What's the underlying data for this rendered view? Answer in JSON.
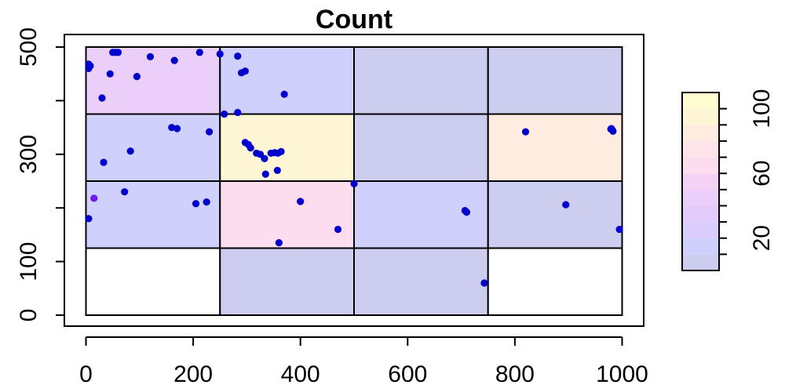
{
  "chart_data": {
    "type": "heatmap",
    "title": "Count",
    "xlabel": "",
    "ylabel": "",
    "xlim": [
      0,
      1000
    ],
    "ylim": [
      0,
      500
    ],
    "x_ticks": [
      "0",
      "200",
      "400",
      "600",
      "800",
      "1000"
    ],
    "y_ticks": [
      "0",
      "100",
      "300",
      "500"
    ],
    "cells": [
      {
        "x0": 0,
        "x1": 250,
        "y0": 375,
        "y1": 500,
        "count": 45
      },
      {
        "x0": 250,
        "x1": 500,
        "y0": 375,
        "y1": 500,
        "count": 15
      },
      {
        "x0": 500,
        "x1": 750,
        "y0": 375,
        "y1": 500,
        "count": 5
      },
      {
        "x0": 750,
        "x1": 1000,
        "y0": 375,
        "y1": 500,
        "count": 5
      },
      {
        "x0": 0,
        "x1": 250,
        "y0": 250,
        "y1": 375,
        "count": 15
      },
      {
        "x0": 250,
        "x1": 500,
        "y0": 250,
        "y1": 375,
        "count": 95
      },
      {
        "x0": 500,
        "x1": 750,
        "y0": 250,
        "y1": 375,
        "count": 5
      },
      {
        "x0": 750,
        "x1": 1000,
        "y0": 250,
        "y1": 375,
        "count": 80
      },
      {
        "x0": 0,
        "x1": 250,
        "y0": 125,
        "y1": 250,
        "count": 15
      },
      {
        "x0": 250,
        "x1": 500,
        "y0": 125,
        "y1": 250,
        "count": 60
      },
      {
        "x0": 500,
        "x1": 750,
        "y0": 125,
        "y1": 250,
        "count": 15
      },
      {
        "x0": 750,
        "x1": 1000,
        "y0": 125,
        "y1": 250,
        "count": 5
      },
      {
        "x0": 0,
        "x1": 250,
        "y0": 0,
        "y1": 125,
        "count": null
      },
      {
        "x0": 250,
        "x1": 500,
        "y0": 0,
        "y1": 125,
        "count": 5
      },
      {
        "x0": 500,
        "x1": 750,
        "y0": 0,
        "y1": 125,
        "count": 5
      },
      {
        "x0": 750,
        "x1": 1000,
        "y0": 0,
        "y1": 125,
        "count": null
      }
    ],
    "points": [
      [
        5,
        462
      ],
      [
        5,
        468
      ],
      [
        8,
        465
      ],
      [
        5,
        460
      ],
      [
        50,
        490
      ],
      [
        55,
        490
      ],
      [
        60,
        490
      ],
      [
        120,
        482
      ],
      [
        165,
        475
      ],
      [
        212,
        490
      ],
      [
        45,
        450
      ],
      [
        95,
        445
      ],
      [
        30,
        405
      ],
      [
        250,
        487
      ],
      [
        283,
        483
      ],
      [
        290,
        452
      ],
      [
        297,
        455
      ],
      [
        370,
        412
      ],
      [
        258,
        375
      ],
      [
        283,
        378
      ],
      [
        160,
        350
      ],
      [
        170,
        348
      ],
      [
        230,
        342
      ],
      [
        83,
        306
      ],
      [
        33,
        285
      ],
      [
        297,
        322
      ],
      [
        303,
        318
      ],
      [
        307,
        312
      ],
      [
        318,
        302
      ],
      [
        325,
        300
      ],
      [
        333,
        292
      ],
      [
        345,
        302
      ],
      [
        352,
        303
      ],
      [
        358,
        302
      ],
      [
        364,
        305
      ],
      [
        357,
        270
      ],
      [
        335,
        263
      ],
      [
        820,
        342
      ],
      [
        980,
        348
      ],
      [
        982,
        345
      ],
      [
        983,
        343
      ],
      [
        979,
        347
      ],
      [
        72,
        230
      ],
      [
        15,
        218
      ],
      [
        205,
        208
      ],
      [
        225,
        211
      ],
      [
        400,
        212
      ],
      [
        500,
        245
      ],
      [
        470,
        160
      ],
      [
        360,
        135
      ],
      [
        5,
        180
      ],
      [
        707,
        195
      ],
      [
        710,
        192
      ],
      [
        895,
        206
      ],
      [
        995,
        160
      ],
      [
        743,
        60
      ]
    ],
    "highlight_points": [
      [
        15,
        218
      ]
    ],
    "legend": {
      "ticks": [
        "20",
        "60",
        "100"
      ],
      "tick_values": [
        20,
        60,
        100
      ],
      "range": [
        0,
        110
      ],
      "bands": [
        {
          "from": 0,
          "to": 10,
          "color": "#cccdef"
        },
        {
          "from": 10,
          "to": 20,
          "color": "#cfd0fb"
        },
        {
          "from": 20,
          "to": 30,
          "color": "#dacdfc"
        },
        {
          "from": 30,
          "to": 40,
          "color": "#e3ccfb"
        },
        {
          "from": 40,
          "to": 50,
          "color": "#ebcefa"
        },
        {
          "from": 50,
          "to": 60,
          "color": "#f3d2f5"
        },
        {
          "from": 60,
          "to": 70,
          "color": "#fcdcef"
        },
        {
          "from": 70,
          "to": 80,
          "color": "#fde4ea"
        },
        {
          "from": 80,
          "to": 90,
          "color": "#fdecdf"
        },
        {
          "from": 90,
          "to": 100,
          "color": "#fef6d4"
        },
        {
          "from": 100,
          "to": 110,
          "color": "#fffdd0"
        }
      ]
    },
    "grid": false,
    "legend_placement": "right"
  },
  "colors": {
    "point": "#0000cd",
    "highlight_point": "#6a1bf0",
    "empty_cell": "#ffffff",
    "border": "#000000"
  }
}
